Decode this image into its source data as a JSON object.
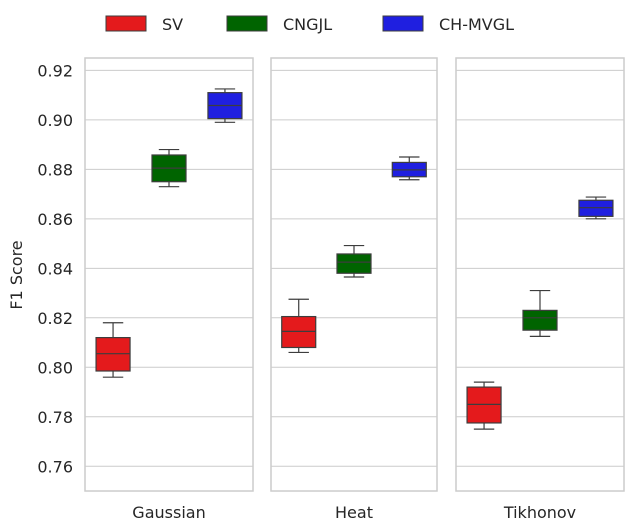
{
  "chart_data": {
    "type": "box",
    "ylabel": "F1 Score",
    "ylim": [
      0.75,
      0.925
    ],
    "yticks": [
      "0.76",
      "0.78",
      "0.80",
      "0.82",
      "0.84",
      "0.86",
      "0.88",
      "0.90",
      "0.92"
    ],
    "grid": true,
    "legend": {
      "placement": "top",
      "entries": [
        {
          "name": "SV",
          "color": "#e41a1c"
        },
        {
          "name": "CNGJL",
          "color": "#006400"
        },
        {
          "name": "CH-MVGL",
          "color": "#1f1fe0"
        }
      ]
    },
    "panels": [
      {
        "xlabel": "Gaussian",
        "boxes": [
          {
            "series": "SV",
            "min": 0.796,
            "q1": 0.7985,
            "median": 0.8055,
            "q3": 0.812,
            "max": 0.818
          },
          {
            "series": "CNGJL",
            "min": 0.873,
            "q1": 0.875,
            "median": 0.8805,
            "q3": 0.8858,
            "max": 0.888
          },
          {
            "series": "CH-MVGL",
            "min": 0.899,
            "q1": 0.9005,
            "median": 0.9058,
            "q3": 0.911,
            "max": 0.9125
          }
        ]
      },
      {
        "xlabel": "Heat",
        "boxes": [
          {
            "series": "SV",
            "min": 0.806,
            "q1": 0.808,
            "median": 0.8145,
            "q3": 0.8205,
            "max": 0.8275
          },
          {
            "series": "CNGJL",
            "min": 0.8365,
            "q1": 0.838,
            "median": 0.8425,
            "q3": 0.8458,
            "max": 0.8492
          },
          {
            "series": "CH-MVGL",
            "min": 0.8758,
            "q1": 0.877,
            "median": 0.8798,
            "q3": 0.8828,
            "max": 0.885
          }
        ]
      },
      {
        "xlabel": "Tikhonov",
        "boxes": [
          {
            "series": "SV",
            "min": 0.775,
            "q1": 0.7775,
            "median": 0.785,
            "q3": 0.792,
            "max": 0.794
          },
          {
            "series": "CNGJL",
            "min": 0.8125,
            "q1": 0.815,
            "median": 0.82,
            "q3": 0.823,
            "max": 0.831
          },
          {
            "series": "CH-MVGL",
            "min": 0.86,
            "q1": 0.861,
            "median": 0.8645,
            "q3": 0.8675,
            "max": 0.8688
          }
        ]
      }
    ]
  }
}
